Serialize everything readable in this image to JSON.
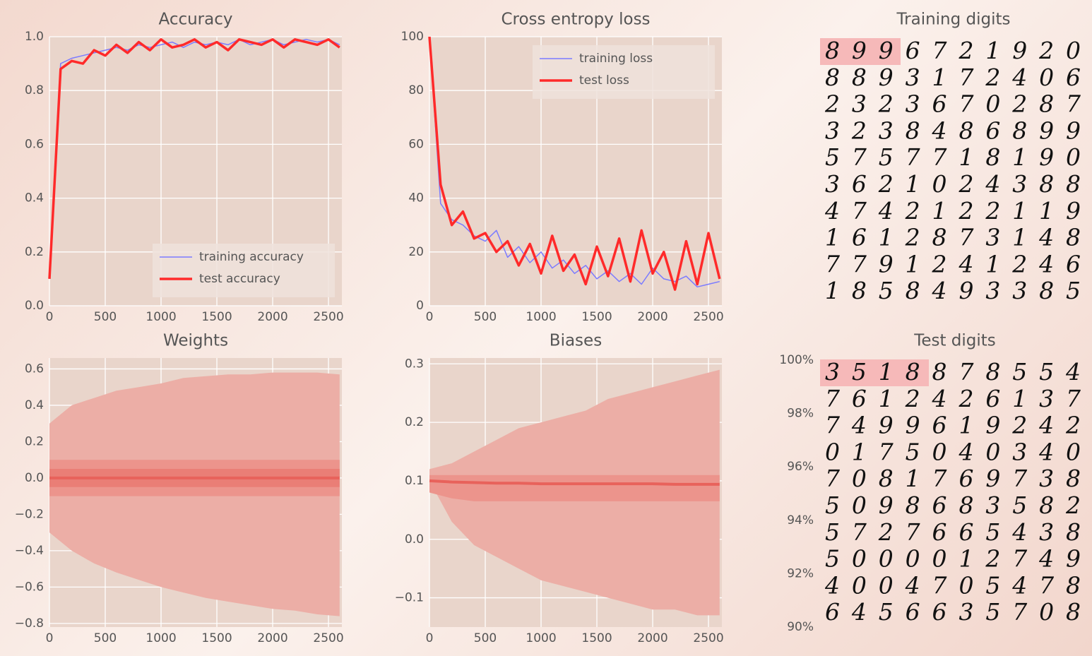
{
  "chart_data": [
    {
      "type": "line",
      "title": "Accuracy",
      "x": [
        0,
        100,
        200,
        300,
        400,
        500,
        600,
        700,
        800,
        900,
        1000,
        1100,
        1200,
        1300,
        1400,
        1500,
        1600,
        1700,
        1800,
        1900,
        2000,
        2100,
        2200,
        2300,
        2400,
        2500,
        2600
      ],
      "series": [
        {
          "name": "training accuracy",
          "color": "#7b7bff",
          "values": [
            0.1,
            0.9,
            0.92,
            0.93,
            0.94,
            0.95,
            0.96,
            0.95,
            0.97,
            0.96,
            0.97,
            0.98,
            0.96,
            0.98,
            0.97,
            0.98,
            0.97,
            0.99,
            0.97,
            0.98,
            0.99,
            0.97,
            0.98,
            0.99,
            0.98,
            0.99,
            0.97
          ]
        },
        {
          "name": "test accuracy",
          "color": "#ff2a2a",
          "values": [
            0.1,
            0.88,
            0.91,
            0.9,
            0.95,
            0.93,
            0.97,
            0.94,
            0.98,
            0.95,
            0.99,
            0.96,
            0.97,
            0.99,
            0.96,
            0.98,
            0.95,
            0.99,
            0.98,
            0.97,
            0.99,
            0.96,
            0.99,
            0.98,
            0.97,
            0.99,
            0.96
          ]
        }
      ],
      "xlim": [
        0,
        2620
      ],
      "xticks": [
        0,
        500,
        1000,
        1500,
        2000,
        2500
      ],
      "ylim": [
        0,
        1
      ],
      "yticks": [
        {
          "value": 0,
          "label": "0.0"
        },
        0.2,
        0.4,
        0.6,
        0.8,
        {
          "value": 1,
          "label": "1.0"
        }
      ],
      "grid": true,
      "legend": "lower right"
    },
    {
      "type": "line",
      "title": "Cross entropy loss",
      "x": [
        0,
        100,
        200,
        300,
        400,
        500,
        600,
        700,
        800,
        900,
        1000,
        1100,
        1200,
        1300,
        1400,
        1500,
        1600,
        1700,
        1800,
        1900,
        2000,
        2100,
        2200,
        2300,
        2400,
        2500,
        2600
      ],
      "series": [
        {
          "name": "training loss",
          "color": "#7b7bff",
          "values": [
            100,
            38,
            32,
            30,
            26,
            24,
            28,
            18,
            22,
            16,
            20,
            14,
            17,
            12,
            15,
            10,
            13,
            9,
            12,
            8,
            14,
            10,
            9,
            11,
            7,
            8,
            9
          ]
        },
        {
          "name": "test loss",
          "color": "#ff2a2a",
          "values": [
            100,
            45,
            30,
            35,
            25,
            27,
            20,
            24,
            15,
            23,
            12,
            26,
            13,
            19,
            8,
            22,
            11,
            25,
            9,
            28,
            12,
            20,
            6,
            24,
            8,
            27,
            10
          ]
        }
      ],
      "xlim": [
        0,
        2620
      ],
      "xticks": [
        0,
        500,
        1000,
        1500,
        2000,
        2500
      ],
      "ylim": [
        0,
        100
      ],
      "yticks": [
        0,
        20,
        40,
        60,
        80,
        100
      ],
      "grid": true,
      "legend": "upper right"
    },
    {
      "type": "band",
      "title": "Weights",
      "x": [
        0,
        200,
        400,
        600,
        800,
        1000,
        1200,
        1400,
        1600,
        1800,
        2000,
        2200,
        2400,
        2600
      ],
      "bands": [
        {
          "color": "#ecaea6",
          "upper": [
            0.3,
            0.4,
            0.44,
            0.48,
            0.5,
            0.52,
            0.55,
            0.56,
            0.57,
            0.57,
            0.58,
            0.58,
            0.58,
            0.57
          ],
          "lower": [
            -0.3,
            -0.4,
            -0.47,
            -0.52,
            -0.56,
            -0.6,
            -0.63,
            -0.66,
            -0.68,
            -0.7,
            -0.72,
            -0.73,
            -0.75,
            -0.76
          ]
        },
        {
          "color": "#ec948c",
          "upper": [
            0.1,
            0.1,
            0.1,
            0.1,
            0.1,
            0.1,
            0.1,
            0.1,
            0.1,
            0.1,
            0.1,
            0.1,
            0.1,
            0.1
          ],
          "lower": [
            -0.1,
            -0.1,
            -0.1,
            -0.1,
            -0.1,
            -0.1,
            -0.1,
            -0.1,
            -0.1,
            -0.1,
            -0.1,
            -0.1,
            -0.1,
            -0.1
          ]
        },
        {
          "color": "#ea7e76",
          "upper": [
            0.05,
            0.05,
            0.05,
            0.05,
            0.05,
            0.05,
            0.05,
            0.05,
            0.05,
            0.05,
            0.05,
            0.05,
            0.05,
            0.05
          ],
          "lower": [
            -0.05,
            -0.05,
            -0.05,
            -0.05,
            -0.05,
            -0.05,
            -0.05,
            -0.05,
            -0.05,
            -0.05,
            -0.05,
            -0.05,
            -0.05,
            -0.05
          ]
        }
      ],
      "series": [
        {
          "color": "#e8625b",
          "values": [
            0,
            0,
            0,
            0,
            0,
            0,
            0,
            0,
            0,
            0,
            0,
            0,
            0,
            0
          ]
        }
      ],
      "xlim": [
        0,
        2620
      ],
      "xticks": [
        0,
        500,
        1000,
        1500,
        2000,
        2500
      ],
      "ylim": [
        -0.82,
        0.66
      ],
      "yticks": [
        {
          "value": -0.8,
          "label": "−0.8"
        },
        {
          "value": -0.6,
          "label": "−0.6"
        },
        {
          "value": -0.4,
          "label": "−0.4"
        },
        {
          "value": -0.2,
          "label": "−0.2"
        },
        {
          "value": 0,
          "label": "0.0"
        },
        0.2,
        0.4,
        0.6
      ],
      "grid": true
    },
    {
      "type": "band",
      "title": "Biases",
      "x": [
        0,
        200,
        400,
        600,
        800,
        1000,
        1200,
        1400,
        1600,
        1800,
        2000,
        2200,
        2400,
        2600
      ],
      "bands": [
        {
          "color": "#ecaea6",
          "upper": [
            0.12,
            0.13,
            0.15,
            0.17,
            0.19,
            0.2,
            0.21,
            0.22,
            0.24,
            0.25,
            0.26,
            0.27,
            0.28,
            0.29
          ],
          "lower": [
            0.1,
            0.03,
            -0.01,
            -0.03,
            -0.05,
            -0.07,
            -0.08,
            -0.09,
            -0.1,
            -0.11,
            -0.12,
            -0.12,
            -0.13,
            -0.13
          ]
        },
        {
          "color": "#ec948c",
          "upper": [
            0.11,
            0.11,
            0.11,
            0.11,
            0.11,
            0.11,
            0.11,
            0.11,
            0.11,
            0.11,
            0.11,
            0.11,
            0.11,
            0.11
          ],
          "lower": [
            0.08,
            0.07,
            0.065,
            0.065,
            0.065,
            0.065,
            0.065,
            0.065,
            0.065,
            0.065,
            0.065,
            0.065,
            0.065,
            0.065
          ]
        }
      ],
      "series": [
        {
          "color": "#e8625b",
          "values": [
            0.1,
            0.098,
            0.097,
            0.096,
            0.096,
            0.095,
            0.095,
            0.095,
            0.095,
            0.095,
            0.095,
            0.094,
            0.094,
            0.094
          ]
        }
      ],
      "xlim": [
        0,
        2620
      ],
      "xticks": [
        0,
        500,
        1000,
        1500,
        2000,
        2500
      ],
      "ylim": [
        -0.15,
        0.31
      ],
      "yticks": [
        {
          "value": -0.1,
          "label": "−0.1"
        },
        {
          "value": 0,
          "label": "0.0"
        },
        0.1,
        0.2,
        0.3
      ],
      "grid": true
    }
  ],
  "training_digits": {
    "title": "Training digits",
    "rows": [
      "8996721920",
      "8893172406",
      "2323670287",
      "3238486899",
      "5757718190",
      "3621024388",
      "4742122119",
      "1612873148",
      "7791241246",
      "1858493385"
    ]
  },
  "test_digits": {
    "title": "Test digits",
    "ylim": [
      90,
      100
    ],
    "yticks": [
      {
        "value": 100,
        "label": "100%"
      },
      {
        "value": 98,
        "label": "98%"
      },
      {
        "value": 96,
        "label": "96%"
      },
      {
        "value": 94,
        "label": "94%"
      },
      {
        "value": 92,
        "label": "92%"
      },
      {
        "value": 90,
        "label": "90%"
      }
    ],
    "rows": [
      "3518878554",
      "7612426137",
      "7499619242",
      "0175040340",
      "7081769738",
      "5098683582",
      "5727665438",
      "5000012749",
      "4004705478",
      "6456635708"
    ]
  }
}
